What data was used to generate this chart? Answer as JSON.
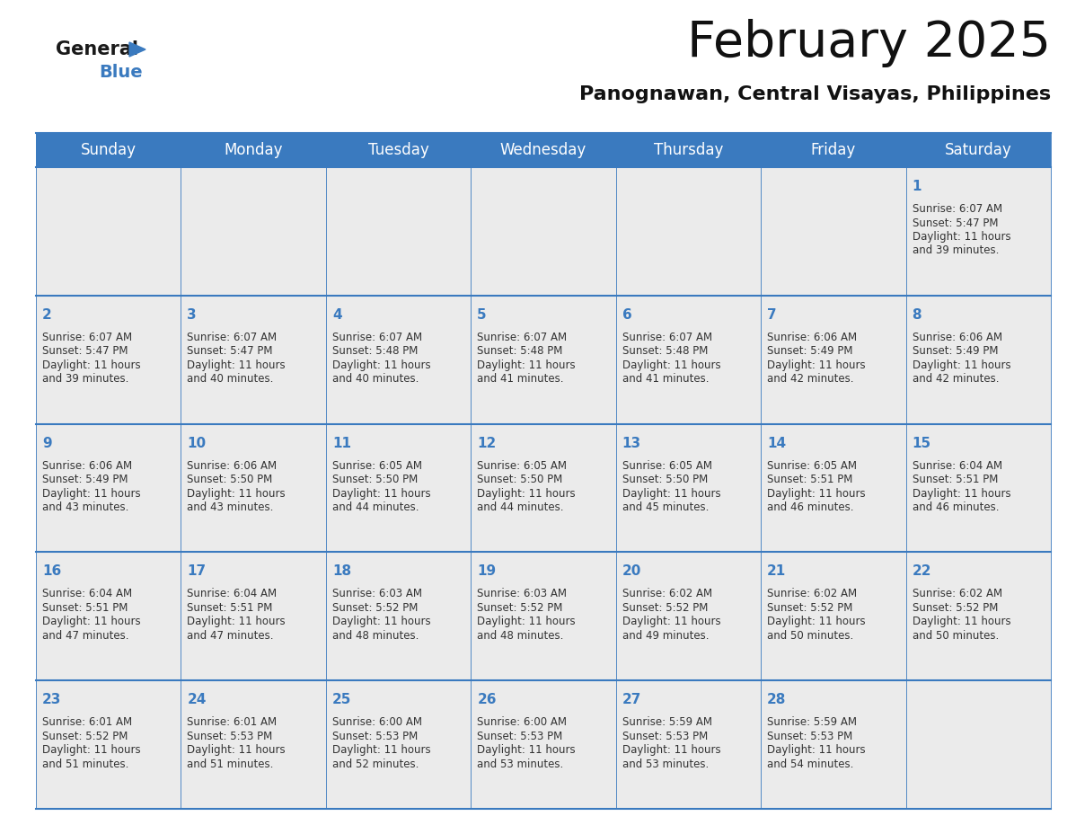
{
  "title": "February 2025",
  "subtitle": "Panognawan, Central Visayas, Philippines",
  "header_bg": "#3a7abf",
  "header_text": "#ffffff",
  "day_names": [
    "Sunday",
    "Monday",
    "Tuesday",
    "Wednesday",
    "Thursday",
    "Friday",
    "Saturday"
  ],
  "cell_bg_light": "#ebebeb",
  "line_color": "#3a7abf",
  "number_color": "#3a7abf",
  "text_color": "#333333",
  "days": [
    {
      "day": 1,
      "col": 6,
      "row": 0,
      "sunrise": "6:07 AM",
      "sunset": "5:47 PM",
      "daylight_h": "11 hours",
      "daylight_m": "39 minutes"
    },
    {
      "day": 2,
      "col": 0,
      "row": 1,
      "sunrise": "6:07 AM",
      "sunset": "5:47 PM",
      "daylight_h": "11 hours",
      "daylight_m": "39 minutes"
    },
    {
      "day": 3,
      "col": 1,
      "row": 1,
      "sunrise": "6:07 AM",
      "sunset": "5:47 PM",
      "daylight_h": "11 hours",
      "daylight_m": "40 minutes"
    },
    {
      "day": 4,
      "col": 2,
      "row": 1,
      "sunrise": "6:07 AM",
      "sunset": "5:48 PM",
      "daylight_h": "11 hours",
      "daylight_m": "40 minutes"
    },
    {
      "day": 5,
      "col": 3,
      "row": 1,
      "sunrise": "6:07 AM",
      "sunset": "5:48 PM",
      "daylight_h": "11 hours",
      "daylight_m": "41 minutes"
    },
    {
      "day": 6,
      "col": 4,
      "row": 1,
      "sunrise": "6:07 AM",
      "sunset": "5:48 PM",
      "daylight_h": "11 hours",
      "daylight_m": "41 minutes"
    },
    {
      "day": 7,
      "col": 5,
      "row": 1,
      "sunrise": "6:06 AM",
      "sunset": "5:49 PM",
      "daylight_h": "11 hours",
      "daylight_m": "42 minutes"
    },
    {
      "day": 8,
      "col": 6,
      "row": 1,
      "sunrise": "6:06 AM",
      "sunset": "5:49 PM",
      "daylight_h": "11 hours",
      "daylight_m": "42 minutes"
    },
    {
      "day": 9,
      "col": 0,
      "row": 2,
      "sunrise": "6:06 AM",
      "sunset": "5:49 PM",
      "daylight_h": "11 hours",
      "daylight_m": "43 minutes"
    },
    {
      "day": 10,
      "col": 1,
      "row": 2,
      "sunrise": "6:06 AM",
      "sunset": "5:50 PM",
      "daylight_h": "11 hours",
      "daylight_m": "43 minutes"
    },
    {
      "day": 11,
      "col": 2,
      "row": 2,
      "sunrise": "6:05 AM",
      "sunset": "5:50 PM",
      "daylight_h": "11 hours",
      "daylight_m": "44 minutes"
    },
    {
      "day": 12,
      "col": 3,
      "row": 2,
      "sunrise": "6:05 AM",
      "sunset": "5:50 PM",
      "daylight_h": "11 hours",
      "daylight_m": "44 minutes"
    },
    {
      "day": 13,
      "col": 4,
      "row": 2,
      "sunrise": "6:05 AM",
      "sunset": "5:50 PM",
      "daylight_h": "11 hours",
      "daylight_m": "45 minutes"
    },
    {
      "day": 14,
      "col": 5,
      "row": 2,
      "sunrise": "6:05 AM",
      "sunset": "5:51 PM",
      "daylight_h": "11 hours",
      "daylight_m": "46 minutes"
    },
    {
      "day": 15,
      "col": 6,
      "row": 2,
      "sunrise": "6:04 AM",
      "sunset": "5:51 PM",
      "daylight_h": "11 hours",
      "daylight_m": "46 minutes"
    },
    {
      "day": 16,
      "col": 0,
      "row": 3,
      "sunrise": "6:04 AM",
      "sunset": "5:51 PM",
      "daylight_h": "11 hours",
      "daylight_m": "47 minutes"
    },
    {
      "day": 17,
      "col": 1,
      "row": 3,
      "sunrise": "6:04 AM",
      "sunset": "5:51 PM",
      "daylight_h": "11 hours",
      "daylight_m": "47 minutes"
    },
    {
      "day": 18,
      "col": 2,
      "row": 3,
      "sunrise": "6:03 AM",
      "sunset": "5:52 PM",
      "daylight_h": "11 hours",
      "daylight_m": "48 minutes"
    },
    {
      "day": 19,
      "col": 3,
      "row": 3,
      "sunrise": "6:03 AM",
      "sunset": "5:52 PM",
      "daylight_h": "11 hours",
      "daylight_m": "48 minutes"
    },
    {
      "day": 20,
      "col": 4,
      "row": 3,
      "sunrise": "6:02 AM",
      "sunset": "5:52 PM",
      "daylight_h": "11 hours",
      "daylight_m": "49 minutes"
    },
    {
      "day": 21,
      "col": 5,
      "row": 3,
      "sunrise": "6:02 AM",
      "sunset": "5:52 PM",
      "daylight_h": "11 hours",
      "daylight_m": "50 minutes"
    },
    {
      "day": 22,
      "col": 6,
      "row": 3,
      "sunrise": "6:02 AM",
      "sunset": "5:52 PM",
      "daylight_h": "11 hours",
      "daylight_m": "50 minutes"
    },
    {
      "day": 23,
      "col": 0,
      "row": 4,
      "sunrise": "6:01 AM",
      "sunset": "5:52 PM",
      "daylight_h": "11 hours",
      "daylight_m": "51 minutes"
    },
    {
      "day": 24,
      "col": 1,
      "row": 4,
      "sunrise": "6:01 AM",
      "sunset": "5:53 PM",
      "daylight_h": "11 hours",
      "daylight_m": "51 minutes"
    },
    {
      "day": 25,
      "col": 2,
      "row": 4,
      "sunrise": "6:00 AM",
      "sunset": "5:53 PM",
      "daylight_h": "11 hours",
      "daylight_m": "52 minutes"
    },
    {
      "day": 26,
      "col": 3,
      "row": 4,
      "sunrise": "6:00 AM",
      "sunset": "5:53 PM",
      "daylight_h": "11 hours",
      "daylight_m": "53 minutes"
    },
    {
      "day": 27,
      "col": 4,
      "row": 4,
      "sunrise": "5:59 AM",
      "sunset": "5:53 PM",
      "daylight_h": "11 hours",
      "daylight_m": "53 minutes"
    },
    {
      "day": 28,
      "col": 5,
      "row": 4,
      "sunrise": "5:59 AM",
      "sunset": "5:53 PM",
      "daylight_h": "11 hours",
      "daylight_m": "54 minutes"
    }
  ],
  "num_rows": 5,
  "num_cols": 7
}
